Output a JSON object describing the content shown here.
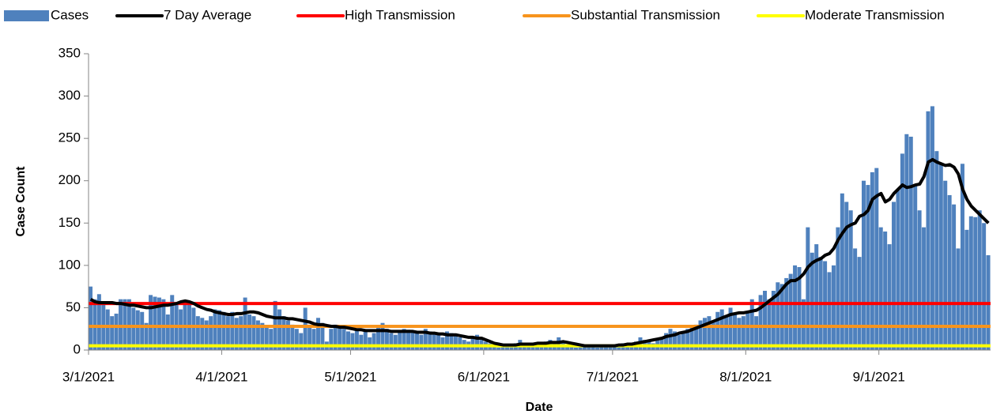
{
  "chart_data": {
    "type": "bar",
    "x_label": "Date",
    "y_label": "Case Count",
    "categories": [
      "3/1/2021",
      null,
      null,
      null,
      null,
      null,
      null,
      null,
      null,
      null,
      null,
      null,
      null,
      null,
      null,
      null,
      null,
      null,
      null,
      null,
      null,
      null,
      null,
      null,
      null,
      null,
      null,
      null,
      null,
      null,
      null,
      "4/1/2021",
      null,
      null,
      null,
      null,
      null,
      null,
      null,
      null,
      null,
      null,
      null,
      null,
      null,
      null,
      null,
      null,
      null,
      null,
      null,
      null,
      null,
      null,
      null,
      null,
      null,
      null,
      null,
      null,
      null,
      "5/1/2021",
      null,
      null,
      null,
      null,
      null,
      null,
      null,
      null,
      null,
      null,
      null,
      null,
      null,
      null,
      null,
      null,
      null,
      null,
      null,
      null,
      null,
      null,
      null,
      null,
      null,
      null,
      null,
      null,
      null,
      null,
      "6/1/2021",
      null,
      null,
      null,
      null,
      null,
      null,
      null,
      null,
      null,
      null,
      null,
      null,
      null,
      null,
      null,
      null,
      null,
      null,
      null,
      null,
      null,
      null,
      null,
      null,
      null,
      null,
      null,
      null,
      null,
      "7/1/2021",
      null,
      null,
      null,
      null,
      null,
      null,
      null,
      null,
      null,
      null,
      null,
      null,
      null,
      null,
      null,
      null,
      null,
      null,
      null,
      null,
      null,
      null,
      null,
      null,
      null,
      null,
      null,
      null,
      null,
      null,
      "8/1/2021",
      null,
      null,
      null,
      null,
      null,
      null,
      null,
      null,
      null,
      null,
      null,
      null,
      null,
      null,
      null,
      null,
      null,
      null,
      null,
      null,
      null,
      null,
      null,
      null,
      null,
      null,
      null,
      null,
      null,
      null,
      "9/1/2021",
      null,
      null,
      null,
      null,
      null,
      null,
      null,
      null,
      null,
      null,
      null,
      null,
      null,
      null,
      null,
      null,
      null,
      null,
      null,
      null,
      null,
      null,
      null,
      null,
      null
    ],
    "series": [
      {
        "name": "Cases",
        "type": "bar",
        "color": "#4f81bd",
        "values": [
          75,
          60,
          66,
          55,
          48,
          40,
          43,
          60,
          60,
          60,
          50,
          47,
          45,
          32,
          65,
          63,
          62,
          60,
          42,
          65,
          55,
          48,
          55,
          57,
          50,
          40,
          38,
          35,
          40,
          48,
          47,
          45,
          40,
          45,
          38,
          40,
          62,
          42,
          40,
          35,
          32,
          28,
          25,
          58,
          48,
          40,
          35,
          30,
          25,
          20,
          50,
          30,
          25,
          38,
          32,
          10,
          25,
          30,
          28,
          25,
          22,
          20,
          25,
          18,
          22,
          15,
          20,
          28,
          32,
          25,
          20,
          18,
          22,
          25,
          24,
          22,
          20,
          18,
          25,
          22,
          20,
          18,
          15,
          22,
          20,
          18,
          15,
          12,
          10,
          15,
          18,
          12,
          10,
          8,
          5,
          3,
          5,
          4,
          6,
          8,
          12,
          8,
          5,
          6,
          5,
          8,
          10,
          12,
          8,
          15,
          10,
          5,
          4,
          3,
          6,
          5,
          4,
          5,
          3,
          4,
          6,
          5,
          4,
          5,
          8,
          6,
          5,
          10,
          15,
          12,
          10,
          8,
          12,
          15,
          20,
          25,
          22,
          18,
          20,
          25,
          28,
          30,
          35,
          38,
          40,
          35,
          45,
          48,
          40,
          50,
          42,
          38,
          40,
          45,
          60,
          40,
          65,
          70,
          60,
          70,
          80,
          78,
          85,
          90,
          100,
          98,
          60,
          145,
          115,
          125,
          110,
          105,
          92,
          100,
          145,
          185,
          175,
          165,
          120,
          110,
          200,
          195,
          210,
          215,
          145,
          140,
          125,
          175,
          190,
          232,
          255,
          252,
          195,
          165,
          145,
          282,
          288,
          235,
          220,
          200,
          183,
          172,
          120,
          220,
          142,
          158,
          157,
          165,
          150,
          112
        ]
      },
      {
        "name": "7 Day Average",
        "type": "line",
        "color": "#000000",
        "values": [
          60,
          57,
          56,
          56,
          56,
          56,
          55,
          55,
          54,
          53,
          53,
          52,
          51,
          50,
          50,
          51,
          52,
          53,
          53,
          54,
          55,
          57,
          58,
          57,
          55,
          52,
          50,
          48,
          47,
          45,
          44,
          43,
          42,
          42,
          43,
          43,
          44,
          45,
          45,
          44,
          42,
          40,
          39,
          38,
          38,
          38,
          37,
          37,
          36,
          35,
          34,
          33,
          31,
          30,
          30,
          29,
          28,
          28,
          27,
          27,
          26,
          25,
          24,
          24,
          23,
          23,
          23,
          23,
          23,
          23,
          22,
          22,
          22,
          22,
          22,
          22,
          21,
          21,
          21,
          20,
          20,
          19,
          19,
          18,
          18,
          18,
          17,
          16,
          15,
          15,
          14,
          14,
          12,
          10,
          8,
          7,
          6,
          6,
          6,
          6,
          7,
          7,
          7,
          7,
          8,
          8,
          8,
          9,
          9,
          9,
          10,
          9,
          8,
          7,
          6,
          5,
          5,
          5,
          5,
          5,
          5,
          5,
          5,
          6,
          6,
          7,
          7,
          8,
          9,
          10,
          11,
          12,
          13,
          14,
          16,
          17,
          18,
          20,
          21,
          22,
          24,
          26,
          28,
          30,
          32,
          34,
          36,
          38,
          40,
          42,
          43,
          44,
          44,
          45,
          46,
          47,
          50,
          54,
          58,
          62,
          66,
          72,
          78,
          82,
          82,
          85,
          90,
          98,
          103,
          106,
          108,
          112,
          114,
          120,
          130,
          138,
          145,
          148,
          150,
          158,
          160,
          165,
          178,
          182,
          185,
          175,
          178,
          185,
          190,
          195,
          192,
          193,
          195,
          196,
          205,
          222,
          225,
          222,
          220,
          218,
          219,
          216,
          208,
          190,
          178,
          170,
          165,
          160,
          155,
          150
        ]
      }
    ],
    "thresholds": [
      {
        "name": "High Transmission",
        "color": "#ff0000",
        "value": 55
      },
      {
        "name": "Substantial Transmission",
        "color": "#f7941d",
        "value": 28
      },
      {
        "name": "Moderate Transmission",
        "color": "#ffff00",
        "value": 5
      }
    ],
    "ylim": [
      0,
      350
    ],
    "yticks": [
      0,
      50,
      100,
      150,
      200,
      250,
      300,
      350
    ],
    "grid": false,
    "legend": "top"
  }
}
